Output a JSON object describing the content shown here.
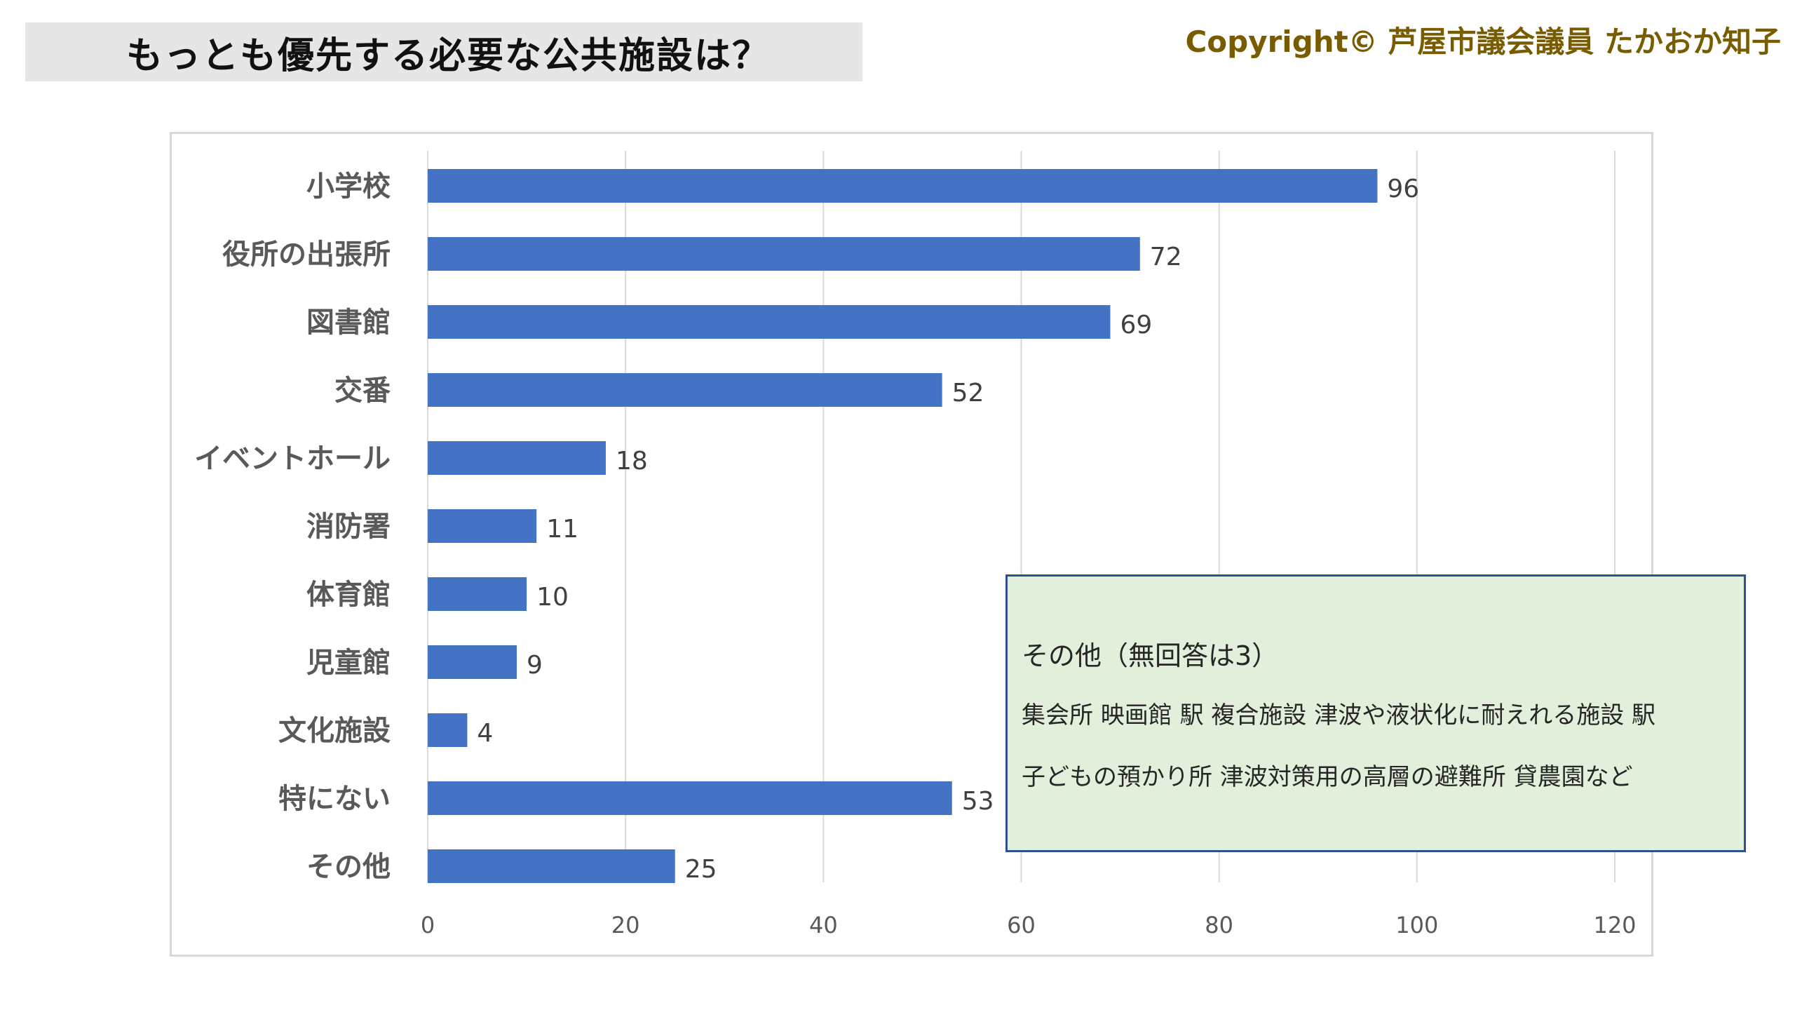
{
  "header": {
    "title": "もっとも優先する必要な公共施設は？",
    "copyright": "Copyright© 芦屋市議会議員 たかおか知子"
  },
  "chart_data": {
    "type": "bar",
    "orientation": "horizontal",
    "title": "",
    "xlabel": "",
    "ylabel": "",
    "categories": [
      "小学校",
      "役所の出張所",
      "図書館",
      "交番",
      "イベントホール",
      "消防署",
      "体育館",
      "児童館",
      "文化施設",
      "特にない",
      "その他"
    ],
    "values": [
      96,
      72,
      69,
      52,
      18,
      11,
      10,
      9,
      4,
      53,
      25
    ],
    "xlim": [
      0,
      120
    ],
    "xticks": [
      0,
      20,
      40,
      60,
      80,
      100,
      120
    ],
    "grid": true,
    "legend": "none",
    "bar_color": "#4472c4",
    "grid_color": "#d9d9d9"
  },
  "note": {
    "title": "その他（無回答は3）",
    "lines": [
      "集会所 映画館 駅 複合施設 津波や液状化に耐えれる施設 駅",
      "子どもの預かり所 津波対策用の高層の避難所 貸農園など"
    ]
  }
}
